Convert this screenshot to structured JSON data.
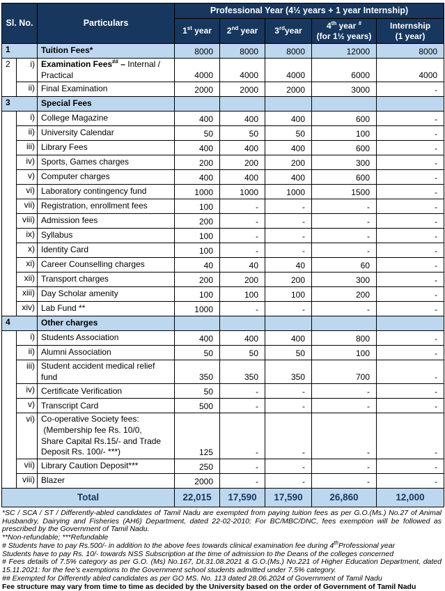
{
  "colors": {
    "header_navy": "#17375E",
    "row_light_blue": "#BDD7EE",
    "border": "#000000",
    "total_text_navy": "#17375E"
  },
  "header": {
    "si_no": "Sl. No.",
    "particulars": "Particulars",
    "prof_year": "Professional Year (4½ years + 1 year Internship)",
    "years": [
      {
        "b": "1",
        "s": "st",
        "a": " year",
        "s2": "",
        "l2": ""
      },
      {
        "b": "2",
        "s": "nd",
        "a": " year",
        "s2": "",
        "l2": ""
      },
      {
        "b": "3",
        "s": "rd",
        "a": "year",
        "s2": "",
        "l2": ""
      },
      {
        "b": "4",
        "s": "th",
        "a": " year ",
        "s2": "#",
        "l2": "(for 1½ years)"
      },
      {
        "b": "Internship",
        "s": "",
        "a": "",
        "s2": "",
        "l2": "(1 year)"
      }
    ]
  },
  "table": {
    "rows": [
      {
        "kind": "section",
        "num": "1",
        "label": "Tuition Fees*",
        "values": [
          "8000",
          "8000",
          "8000",
          "12000",
          "8000"
        ],
        "blue": true
      },
      {
        "kind": "item",
        "numCell": {
          "text": "2",
          "rowspan": 2
        },
        "roman": "i)",
        "labelParts": {
          "b1": "Examination Fees",
          "sup": "##",
          "b2": " –",
          "t": " Internal /\nPractical"
        },
        "values": [
          "4000",
          "4000",
          "4000",
          "6000",
          "4000"
        ]
      },
      {
        "kind": "item",
        "roman": "ii)",
        "label": "Final Examination",
        "values": [
          "2000",
          "2000",
          "2000",
          "3000",
          "-"
        ]
      },
      {
        "kind": "section",
        "num": "3",
        "label": "Special Fees",
        "values": [
          "",
          "",
          "",
          "",
          ""
        ],
        "blue": true
      },
      {
        "kind": "item",
        "numCell": {
          "text": "",
          "rowspan": 14
        },
        "roman": "i)",
        "label": "College Magazine",
        "values": [
          "400",
          "400",
          "400",
          "600",
          "-"
        ]
      },
      {
        "kind": "item",
        "roman": "ii)",
        "label": "University Calendar",
        "values": [
          "50",
          "50",
          "50",
          "100",
          "-"
        ]
      },
      {
        "kind": "item",
        "roman": "iii)",
        "label": "Library Fees",
        "values": [
          "400",
          "400",
          "400",
          "600",
          "-"
        ]
      },
      {
        "kind": "item",
        "roman": "iv)",
        "label": "Sports, Games charges",
        "values": [
          "200",
          "200",
          "200",
          "300",
          "-"
        ]
      },
      {
        "kind": "item",
        "roman": "v)",
        "label": "Computer charges",
        "values": [
          "400",
          "400",
          "400",
          "600",
          "-"
        ]
      },
      {
        "kind": "item",
        "roman": "vi)",
        "label": "Laboratory contingency fund",
        "values": [
          "1000",
          "1000",
          "1000",
          "1500",
          "-"
        ]
      },
      {
        "kind": "item",
        "roman": "vii)",
        "label": "Registration, enrollment fees",
        "values": [
          "100",
          "-",
          "-",
          "-",
          "-"
        ]
      },
      {
        "kind": "item",
        "roman": "viii)",
        "label": "Admission fees",
        "values": [
          "200",
          "-",
          "-",
          "-",
          "-"
        ]
      },
      {
        "kind": "item",
        "roman": "ix)",
        "label": "Syllabus",
        "values": [
          "100",
          "-",
          "-",
          "-",
          "-"
        ]
      },
      {
        "kind": "item",
        "roman": "x)",
        "label": "Identity Card",
        "values": [
          "100",
          "-",
          "-",
          "-",
          "-"
        ]
      },
      {
        "kind": "item",
        "roman": "xi)",
        "label": "Career Counselling charges",
        "values": [
          "40",
          "40",
          "40",
          "60",
          "-"
        ]
      },
      {
        "kind": "item",
        "roman": "xii)",
        "label": "Transport charges",
        "values": [
          "200",
          "200",
          "200",
          "300",
          "-"
        ]
      },
      {
        "kind": "item",
        "roman": "xiii)",
        "label": "Day Scholar amenity",
        "values": [
          "100",
          "100",
          "100",
          "200",
          "-"
        ]
      },
      {
        "kind": "item",
        "roman": "xiv)",
        "label": "Lab Fund **",
        "values": [
          "1000",
          "-",
          "-",
          "-",
          "-"
        ]
      },
      {
        "kind": "section",
        "num": "4",
        "label": "Other charges",
        "values": [
          "",
          "",
          "",
          "",
          ""
        ],
        "blue": true
      },
      {
        "kind": "item",
        "numCell": {
          "text": "",
          "rowspan": 8
        },
        "roman": "i)",
        "label": "Students Association",
        "values": [
          "400",
          "400",
          "400",
          "800",
          "-"
        ]
      },
      {
        "kind": "item",
        "roman": "ii)",
        "label": "Alumni Association",
        "values": [
          "50",
          "50",
          "50",
          "100",
          "-"
        ]
      },
      {
        "kind": "item",
        "roman": "iii)",
        "label": "Student accident medical relief\nfund",
        "values": [
          "350",
          "350",
          "350",
          "700",
          "-"
        ]
      },
      {
        "kind": "item",
        "roman": "iv)",
        "label": "Certificate Verification",
        "values": [
          "50",
          "-",
          "-",
          "-",
          "-"
        ]
      },
      {
        "kind": "item",
        "roman": "v)",
        "label": "Transcript Card",
        "values": [
          "500",
          "-",
          "-",
          "-",
          "-"
        ]
      },
      {
        "kind": "item",
        "roman": "vi)",
        "label": "Co-operative Society fees:\n (Membership fee Rs. 10/0,\nShare Capital Rs.15/- and Trade\nDeposit Rs. 100/- ***)",
        "values": [
          "125",
          "-",
          "-",
          "-",
          "-"
        ]
      },
      {
        "kind": "item",
        "roman": "vii)",
        "label": "Library Caution Deposit***",
        "values": [
          "250",
          "-",
          "-",
          "-",
          "-"
        ]
      },
      {
        "kind": "item",
        "roman": "viii)",
        "label": "Blazer",
        "values": [
          "2000",
          "-",
          "-",
          "-",
          "-"
        ]
      }
    ],
    "total": {
      "label": "Total",
      "values": [
        "22,015",
        "17,590",
        "17,590",
        "26,860",
        "12,000"
      ]
    }
  },
  "footnotes": {
    "f1": "*SC / SCA / ST / Differently-abled candidates of Tamil Nadu are exempted from paying tuition fees as per G.O.(Ms.) No.27 of Animal Husbandry, Dairying and Fisheries (AH6) Department, dated 22-02-2010; For BC/MBC/DNC, fees exemption will be followed as prescribed by the Government of Tamil Nadu.",
    "f2": "**Non-refundable; ***Refundable",
    "f3a": "# Students have to pay Rs.500/- in addition to the above fees towards clinical examination fee during 4",
    "f3sup": "th",
    "f3b": "Professional year",
    "f4": "Students have to pay Rs. 10/- towards NSS Subscription at the time of admission to the Deans of the colleges concerned",
    "f5": "# Fees details of 7.5% category as per G.O. (Ms) No.167, Dt.31.08.2021 & G.O.(Ms.) No.221 of Higher Education Department, dated 15.11.2021: for the fee's exemptions to the Government school students admitted under 7.5% category.",
    "f6": "## Exempted for Differently abled candidates as per GO MS. No. 113 dated 28.06.2024 of Government of Tamil Nadu",
    "f7": "Fee structure may vary from time to time as decided by the University based on the order of Government of Tamil Nadu"
  }
}
